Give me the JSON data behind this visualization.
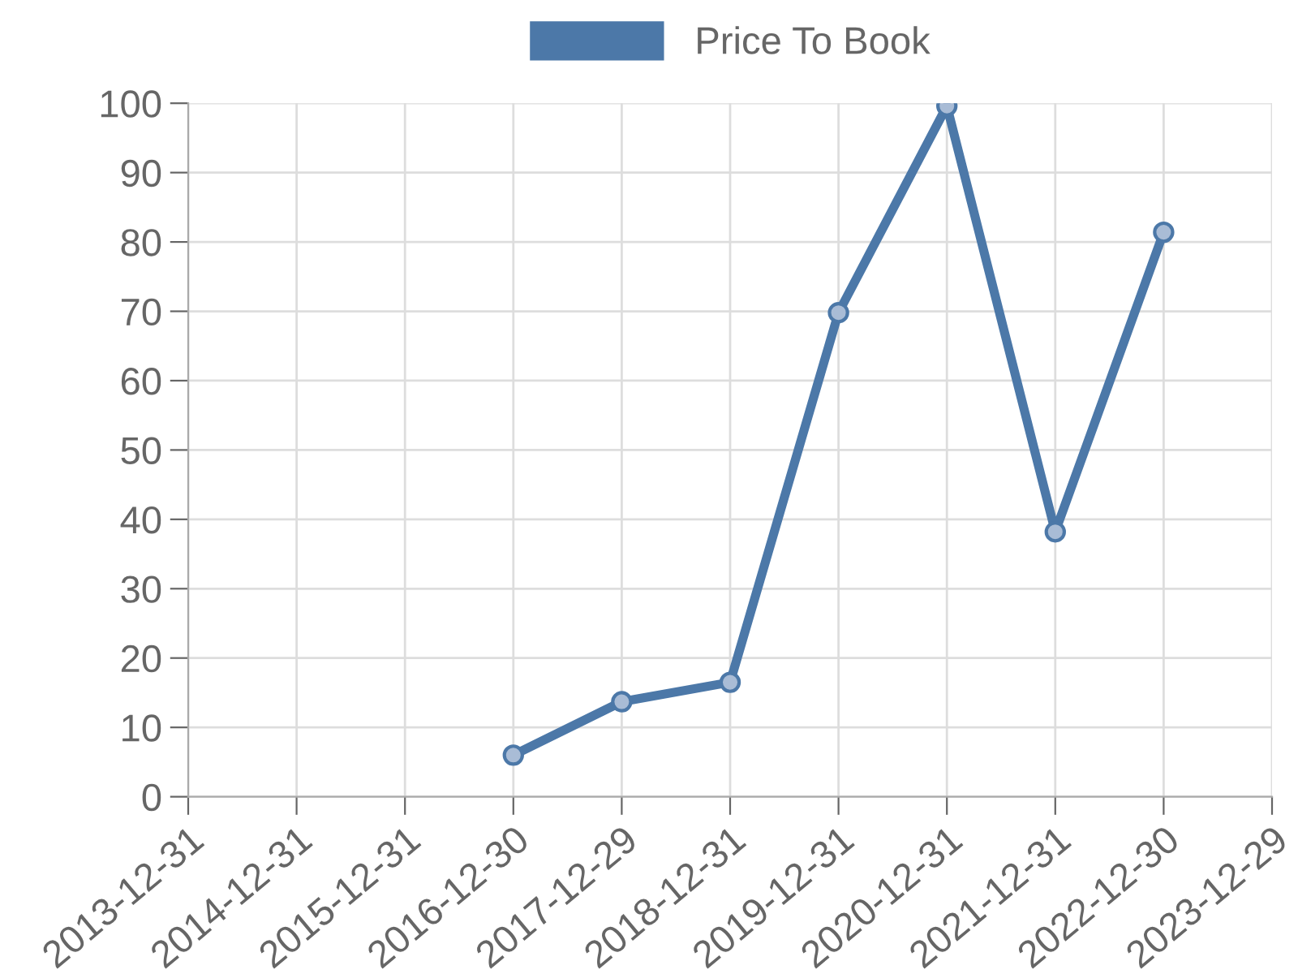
{
  "chart_data": {
    "type": "line",
    "categories": [
      "2013-12-31",
      "2014-12-31",
      "2015-12-31",
      "2016-12-30",
      "2017-12-29",
      "2018-12-31",
      "2019-12-31",
      "2020-12-31",
      "2021-12-31",
      "2022-12-30",
      "2023-12-29"
    ],
    "series": [
      {
        "name": "Price To Book",
        "color": "#4c78a8",
        "values": [
          null,
          null,
          null,
          6.0,
          13.7,
          16.5,
          69.8,
          99.6,
          38.2,
          81.4,
          null
        ]
      }
    ],
    "ylim": [
      0,
      100
    ],
    "yticks": [
      0,
      10,
      20,
      30,
      40,
      50,
      60,
      70,
      80,
      90,
      100
    ],
    "grid": true,
    "legend": "top",
    "marker": "circle",
    "line_style": "solid"
  }
}
